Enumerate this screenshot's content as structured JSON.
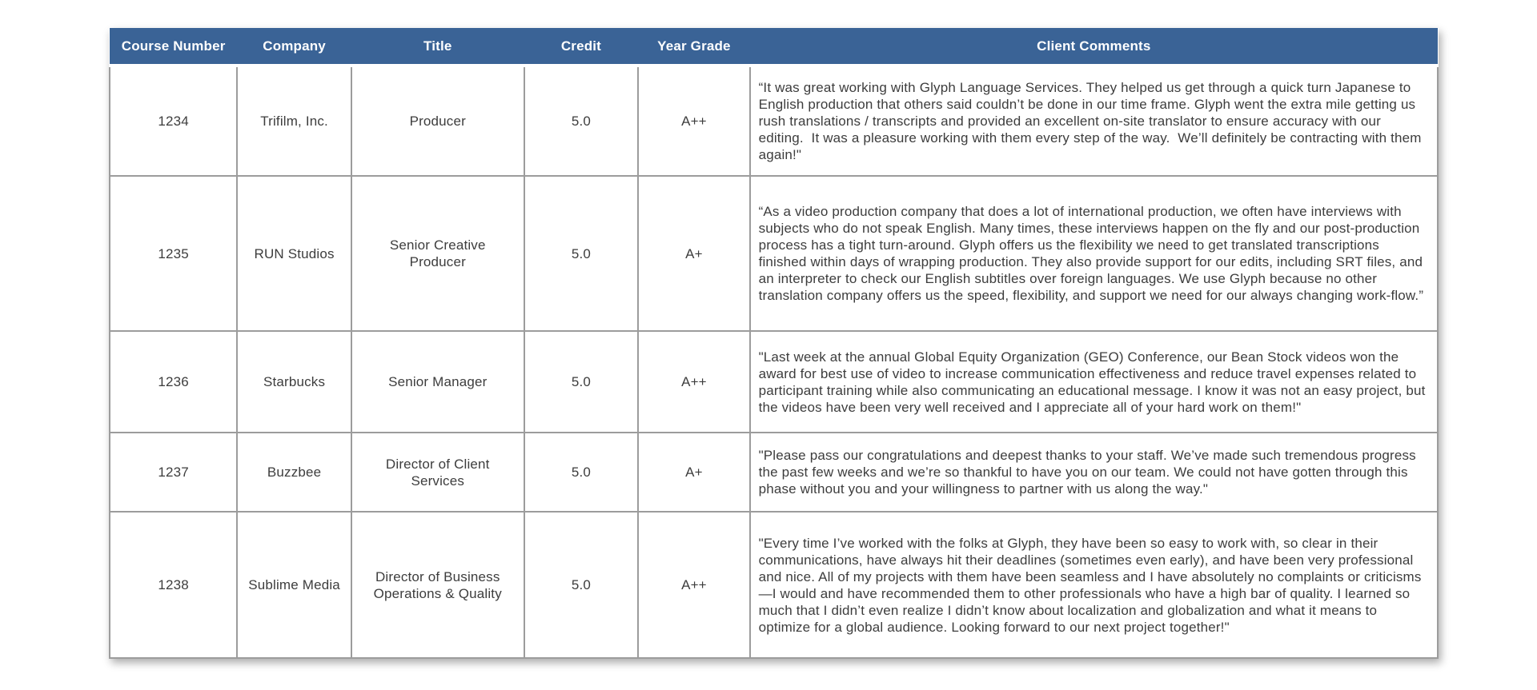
{
  "colors": {
    "page_bg": "#ffffff",
    "header_bg": "#3a6396",
    "header_text": "#ffffff",
    "border": "#9c9c9c",
    "body_text": "#3d3d3d"
  },
  "chart_data": {
    "type": "table",
    "title": "",
    "columns": [
      "Course Number",
      "Company",
      "Title",
      "Credit",
      "Year Grade",
      "Client Comments"
    ],
    "rows": [
      [
        "1234",
        "Trifilm, Inc.",
        "Producer",
        "5.0",
        "A++",
        "“It was great working with Glyph Language Services. They helped us get through a quick turn Japanese to English production that others said couldn’t be done in our time frame. Glyph went the extra mile getting us rush translations / transcripts and provided an excellent on-site translator to ensure accuracy with our editing.  It was a pleasure working with them every step of the way.  We’ll definitely be contracting with them again!\""
      ],
      [
        "1235",
        "RUN Studios",
        "Senior Creative Producer",
        "5.0",
        "A+",
        "“As a video production company that does a lot of international production, we often have interviews with subjects who do not speak English. Many times, these interviews happen on the fly and our post-production process has a tight turn-around. Glyph offers us the flexibility we need to get translated transcriptions finished within days of wrapping production. They also provide support for our edits, including SRT files, and an interpreter to check our English subtitles over foreign languages. We use Glyph because no other translation company offers us the speed, flexibility, and support we need for our always changing work-flow.”"
      ],
      [
        "1236",
        "Starbucks",
        "Senior Manager",
        "5.0",
        "A++",
        "\"Last week at the annual Global Equity Organization (GEO) Conference, our Bean Stock videos won the award for best use of video to increase communication effectiveness and reduce travel expenses related to participant training while also communicating an educational message. I know it was not an easy project, but the videos have been very well received and I appreciate all of your hard work on them!\""
      ],
      [
        "1237",
        "Buzzbee",
        "Director of Client Services",
        "5.0",
        "A+",
        "\"Please pass our congratulations and deepest thanks to your staff. We’ve made such tremendous progress the past few weeks and we’re so thankful to have you on our team. We could not have gotten through this phase without you and your willingness to partner with us along the way.\""
      ],
      [
        "1238",
        "Sublime Media",
        "Director of Business Operations & Quality",
        "5.0",
        "A++",
        "\"Every time I’ve worked with the folks at Glyph, they have been so easy to work with, so clear in their communications, have always hit their deadlines (sometimes even early), and have been very professional and nice. All of my projects with them have been seamless and I have absolutely no complaints or criticisms—I would and have recommended them to other professionals who have a high bar of quality. I learned so much that I didn’t even realize I didn’t know about localization and globalization and what it means to optimize for a global audience. Looking forward to our next project together!\""
      ]
    ]
  }
}
